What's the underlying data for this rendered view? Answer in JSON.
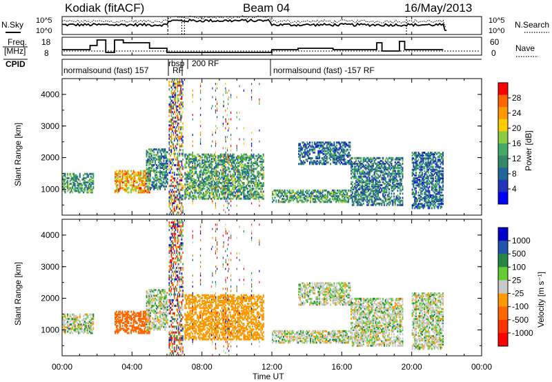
{
  "header": {
    "station": "Kodiak (fitACF)",
    "beam": "Beam 04",
    "date": "16/May/2013"
  },
  "panels": {
    "nsky_label": "N.Sky",
    "nsky_ticks": [
      "10^5",
      "10^0"
    ],
    "nsearch_label": "N.Search",
    "nsearch_ticks": [
      "10^5",
      "10^0"
    ],
    "freq_label_1": "Freq.",
    "freq_label_2": "[MHz]",
    "freq_ticks": [
      "18",
      "8"
    ],
    "nave_label": "Nave",
    "nave_ticks": [
      "60",
      "0"
    ],
    "cpid_label": "CPID",
    "cpid_segments": [
      {
        "label": "normalsound (fast) 157",
        "start": 0.05,
        "end": 6.1
      },
      {
        "label": "rbsp",
        "start": 6.15,
        "end": 6.55
      },
      {
        "label": "RF",
        "start": 6.4,
        "end": 6.9
      },
      {
        "label": "200 RF",
        "start": 7.05,
        "end": 12.0
      },
      {
        "label": "normalsound (fast) -157 RF",
        "start": 12.05,
        "end": 24.0
      }
    ]
  },
  "colorbars": {
    "power": {
      "title": "Power [dB]",
      "ticks": [
        "28",
        "24",
        "20",
        "16",
        "12",
        "8",
        "4"
      ],
      "colors": [
        "#ff0000",
        "#ff6600",
        "#ff9900",
        "#ffcc00",
        "#88cc44",
        "#44aa66",
        "#338866",
        "#226699",
        "#2233bb",
        "#0000ff"
      ]
    },
    "velocity": {
      "title": "Velocity [m s⁻¹]",
      "ticks": [
        "1000",
        "500",
        "100",
        "25",
        "-25",
        "-100",
        "-500",
        "-1000"
      ],
      "colors": [
        "#0000cc",
        "#2255aa",
        "#228844",
        "#66cc33",
        "#c8c8c8",
        "#ff9900",
        "#ff6600",
        "#ff3300",
        "#ff0000"
      ]
    }
  },
  "axes": {
    "ylabel": "Slant Range [km]",
    "xlabel": "Time UT",
    "y_ticks": [
      "4000",
      "3000",
      "2000",
      "1000"
    ],
    "x_ticks": [
      "00:00",
      "04:00",
      "08:00",
      "12:00",
      "16:00",
      "20:00",
      "00:00"
    ]
  },
  "chart_data": {
    "type": "heatmap",
    "title": "Kodiak (fitACF) Beam 04 16/May/2013",
    "xlabel": "Time UT",
    "ylabel": "Slant Range [km]",
    "xlim": [
      0,
      24
    ],
    "ylim": [
      180,
      4500
    ],
    "series": [
      {
        "name": "Power [dB]",
        "range": [
          0,
          30
        ]
      },
      {
        "name": "Velocity [m s-1]",
        "range": [
          -1000,
          1000
        ]
      }
    ],
    "echo_regions": [
      {
        "t_start": 0.0,
        "t_end": 1.8,
        "r_start": 900,
        "r_end": 1500,
        "power": 12,
        "velocity": 0
      },
      {
        "t_start": 3.0,
        "t_end": 5.0,
        "r_start": 900,
        "r_end": 1600,
        "power": 22,
        "velocity": -450
      },
      {
        "t_start": 4.8,
        "t_end": 6.0,
        "r_start": 1000,
        "r_end": 2300,
        "power": 10,
        "velocity": 0
      },
      {
        "t_start": 7.0,
        "t_end": 11.5,
        "r_start": 700,
        "r_end": 2100,
        "power": 12,
        "velocity": -200
      },
      {
        "t_start": 12.0,
        "t_end": 16.5,
        "r_start": 600,
        "r_end": 1000,
        "power": 12,
        "velocity": 0
      },
      {
        "t_start": 13.5,
        "t_end": 16.5,
        "r_start": 1800,
        "r_end": 2500,
        "power": 8,
        "velocity": 0
      },
      {
        "t_start": 16.5,
        "t_end": 19.5,
        "r_start": 500,
        "r_end": 2000,
        "power": 9,
        "velocity": 0
      },
      {
        "t_start": 20.0,
        "t_end": 21.8,
        "r_start": 400,
        "r_end": 2200,
        "power": 8,
        "velocity": 0
      }
    ]
  }
}
